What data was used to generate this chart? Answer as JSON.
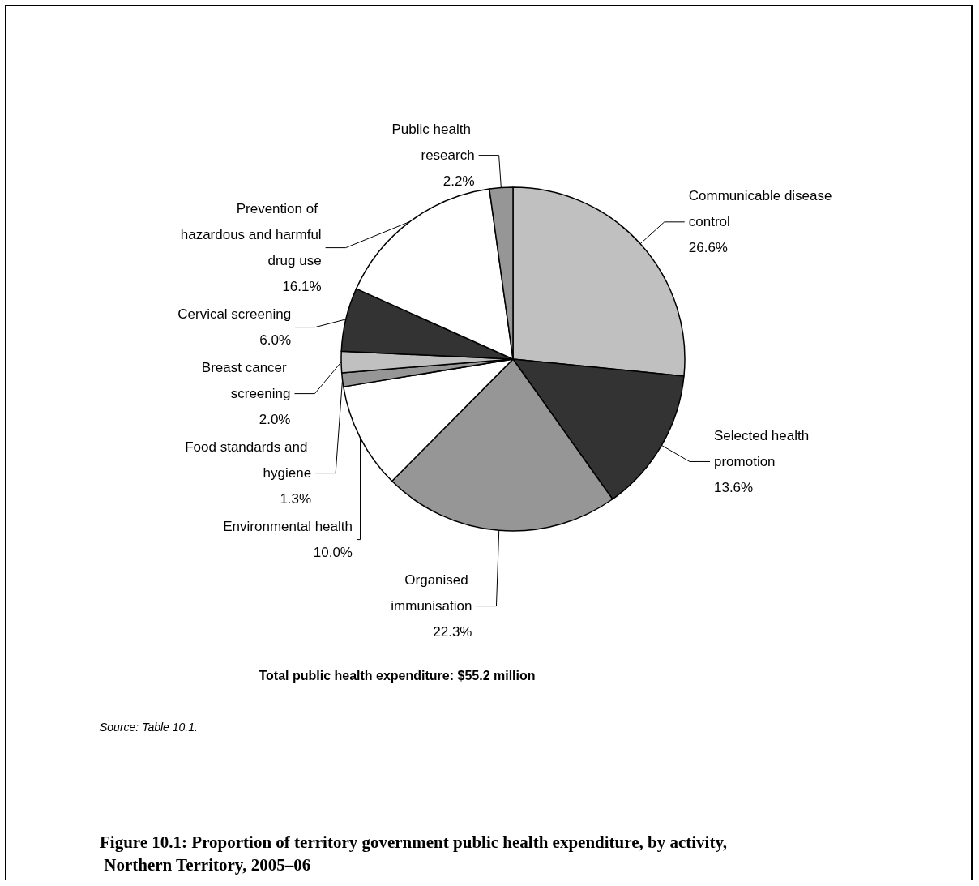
{
  "chart_data": {
    "type": "pie",
    "title": "Figure 10.1: Proportion of territory government public health expenditure, by activity, Northern Territory, 2005–06",
    "subtitle": "Total public health expenditure: $55.2 million",
    "annotations": [
      "Source: Table 10.1."
    ],
    "categories": [
      "Communicable disease control",
      "Selected health promotion",
      "Organised immunisation",
      "Environmental health",
      "Food standards and hygiene",
      "Breast cancer screening",
      "Cervical screening",
      "Prevention of hazardous and harmful drug use",
      "Public health research"
    ],
    "values": [
      26.6,
      13.6,
      22.3,
      10.0,
      1.3,
      2.0,
      6.0,
      16.1,
      2.2
    ],
    "value_labels": [
      "26.6%",
      "13.6%",
      "22.3%",
      "10.0%",
      "1.3%",
      "2.0%",
      "6.0%",
      "16.1%",
      "2.2%"
    ],
    "colors": [
      "#c0c0c0",
      "#333333",
      "#969696",
      "#ffffff",
      "#969696",
      "#c0c0c0",
      "#333333",
      "#ffffff",
      "#969696"
    ],
    "legend": false
  }
}
